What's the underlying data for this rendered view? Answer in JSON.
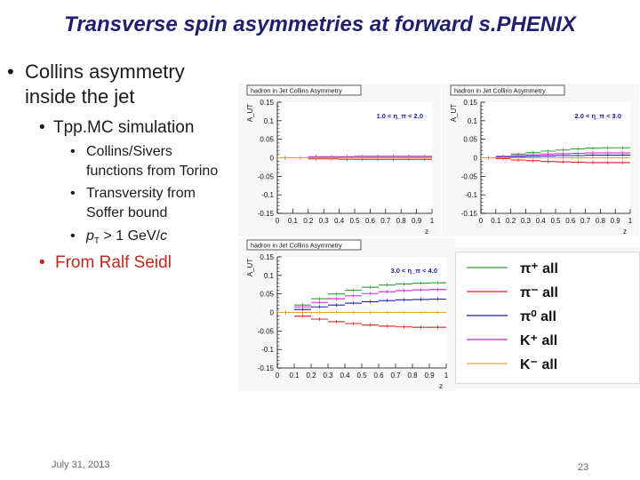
{
  "slide": {
    "title": "Transverse spin asymmetries at forward s.PHENIX",
    "bullets": {
      "collins_line1": "Collins asymmetry",
      "collins_line2": "inside the jet",
      "tppmc": "Tpp.MC simulation",
      "sivers_line1": "Collins/Sivers",
      "sivers_line2": "functions from Torino",
      "transversity_line1": "Transversity from",
      "transversity_line2": "Soffer bound",
      "pt_prefix": "p",
      "pt_sub": "T",
      "pt_rest": " > 1 GeV/",
      "pt_unit": "c",
      "from": "From Ralf Seidl"
    },
    "footer": {
      "date": "July 31, 2013",
      "page": "23"
    }
  },
  "chart_data": [
    {
      "type": "line",
      "title": "hadron in Jet Collins Asymmetry",
      "eta_range": "1.0 < η_π < 2.0",
      "ylabel": "A_UT",
      "xlabel": "z",
      "xlim": [
        0,
        1
      ],
      "ylim": [
        -0.15,
        0.15
      ],
      "x_ticks": [
        "0",
        "0.1",
        "0.2",
        "0.3",
        "0.4",
        "0.5",
        "0.6",
        "0.7",
        "0.8",
        "0.9",
        "1"
      ],
      "y_ticks": [
        "-0.15",
        "-0.1",
        "-0.05",
        "0",
        "0.05",
        "0.1",
        "0.15"
      ],
      "bin_edges": [
        0,
        0.1,
        0.2,
        0.3,
        0.4,
        0.5,
        0.6,
        0.7,
        0.8,
        0.9,
        1.0
      ],
      "series": [
        {
          "name": "π⁺ all",
          "color": "#2e9c2e",
          "values": [
            0.0,
            0.0,
            0.003,
            0.003,
            0.003,
            0.004,
            0.004,
            0.004,
            0.004,
            0.004
          ]
        },
        {
          "name": "π⁻ all",
          "color": "#d42020",
          "values": [
            0.0,
            0.0,
            -0.003,
            -0.003,
            -0.004,
            -0.004,
            -0.004,
            -0.004,
            -0.004,
            -0.004
          ]
        },
        {
          "name": "π⁰ all",
          "color": "#1c1cb0",
          "values": [
            0.0,
            0.0,
            0.0,
            0.0,
            0.0,
            0.0,
            0.0,
            0.0,
            0.0,
            0.0
          ]
        },
        {
          "name": "K⁺ all",
          "color": "#d020d0",
          "values": [
            0.0,
            0.0,
            0.002,
            0.002,
            0.002,
            0.003,
            0.003,
            0.003,
            0.003,
            0.003
          ]
        },
        {
          "name": "K⁻ all",
          "color": "#f0a020",
          "values": [
            0.0,
            0.0,
            0.0,
            0.0,
            0.0,
            0.0,
            0.0,
            0.0,
            0.0,
            0.0
          ]
        }
      ]
    },
    {
      "type": "line",
      "title": "hadron in Jet Collins Asymmetry",
      "eta_range": "2.0 < η_π < 3.0",
      "ylabel": "A_UT",
      "xlabel": "z",
      "xlim": [
        0,
        1
      ],
      "ylim": [
        -0.15,
        0.15
      ],
      "x_ticks": [
        "0",
        "0.1",
        "0.2",
        "0.3",
        "0.4",
        "0.5",
        "0.6",
        "0.7",
        "0.8",
        "0.9",
        "1"
      ],
      "y_ticks": [
        "-0.15",
        "-0.1",
        "-0.05",
        "0",
        "0.05",
        "0.1",
        "0.15"
      ],
      "bin_edges": [
        0,
        0.1,
        0.2,
        0.3,
        0.4,
        0.5,
        0.6,
        0.7,
        0.8,
        0.9,
        1.0
      ],
      "series": [
        {
          "name": "π⁺ all",
          "color": "#2e9c2e",
          "values": [
            0.0,
            0.004,
            0.01,
            0.014,
            0.018,
            0.021,
            0.024,
            0.026,
            0.027,
            0.027
          ]
        },
        {
          "name": "π⁻ all",
          "color": "#d42020",
          "values": [
            0.0,
            -0.002,
            -0.006,
            -0.008,
            -0.01,
            -0.011,
            -0.012,
            -0.013,
            -0.013,
            -0.013
          ]
        },
        {
          "name": "π⁰ all",
          "color": "#1c1cb0",
          "values": [
            0.0,
            0.002,
            0.003,
            0.004,
            0.005,
            0.006,
            0.006,
            0.007,
            0.007,
            0.007
          ]
        },
        {
          "name": "K⁺ all",
          "color": "#d020d0",
          "values": [
            0.0,
            0.003,
            0.006,
            0.008,
            0.01,
            0.011,
            0.012,
            0.013,
            0.013,
            0.013
          ]
        },
        {
          "name": "K⁻ all",
          "color": "#f0a020",
          "values": [
            0.0,
            0.0,
            0.0,
            0.0,
            0.0,
            0.0,
            0.0,
            0.0,
            0.0,
            0.0
          ]
        }
      ]
    },
    {
      "type": "line",
      "title": "hadron in Jet Collins Asymmetry",
      "eta_range": "3.0 < η_π < 4.0",
      "ylabel": "A_UT",
      "xlabel": "z",
      "xlim": [
        0,
        1
      ],
      "ylim": [
        -0.15,
        0.15
      ],
      "x_ticks": [
        "0",
        "0.1",
        "0.2",
        "0.3",
        "0.4",
        "0.5",
        "0.6",
        "0.7",
        "0.8",
        "0.9",
        "1"
      ],
      "y_ticks": [
        "-0.15",
        "-0.1",
        "-0.05",
        "0",
        "0.05",
        "0.1",
        "0.15"
      ],
      "bin_edges": [
        0,
        0.1,
        0.2,
        0.3,
        0.4,
        0.5,
        0.6,
        0.7,
        0.8,
        0.9,
        1.0
      ],
      "series": [
        {
          "name": "π⁺ all",
          "color": "#2e9c2e",
          "values": [
            0.0,
            0.02,
            0.037,
            0.05,
            0.06,
            0.068,
            0.074,
            0.077,
            0.079,
            0.08
          ]
        },
        {
          "name": "π⁻ all",
          "color": "#d42020",
          "values": [
            0.0,
            -0.01,
            -0.018,
            -0.025,
            -0.03,
            -0.034,
            -0.037,
            -0.039,
            -0.04,
            -0.04
          ]
        },
        {
          "name": "π⁰ all",
          "color": "#1c1cb0",
          "values": [
            0.0,
            0.008,
            0.015,
            0.02,
            0.025,
            0.029,
            0.032,
            0.034,
            0.035,
            0.036
          ]
        },
        {
          "name": "K⁺ all",
          "color": "#d020d0",
          "values": [
            0.0,
            0.015,
            0.027,
            0.037,
            0.045,
            0.051,
            0.056,
            0.059,
            0.061,
            0.062
          ]
        },
        {
          "name": "K⁻ all",
          "color": "#f0a020",
          "values": [
            0.0,
            0.0,
            0.0,
            0.0,
            0.0,
            0.0,
            0.0,
            0.0,
            0.0,
            0.0
          ]
        }
      ]
    }
  ],
  "legend": {
    "entries": [
      {
        "label": "π⁺ all",
        "color": "#2e9c2e"
      },
      {
        "label": "π⁻ all",
        "color": "#d42020"
      },
      {
        "label": "π⁰ all",
        "color": "#1c1cb0"
      },
      {
        "label": "K⁺ all",
        "color": "#d020d0"
      },
      {
        "label": "K⁻ all",
        "color": "#f0a020"
      }
    ]
  }
}
